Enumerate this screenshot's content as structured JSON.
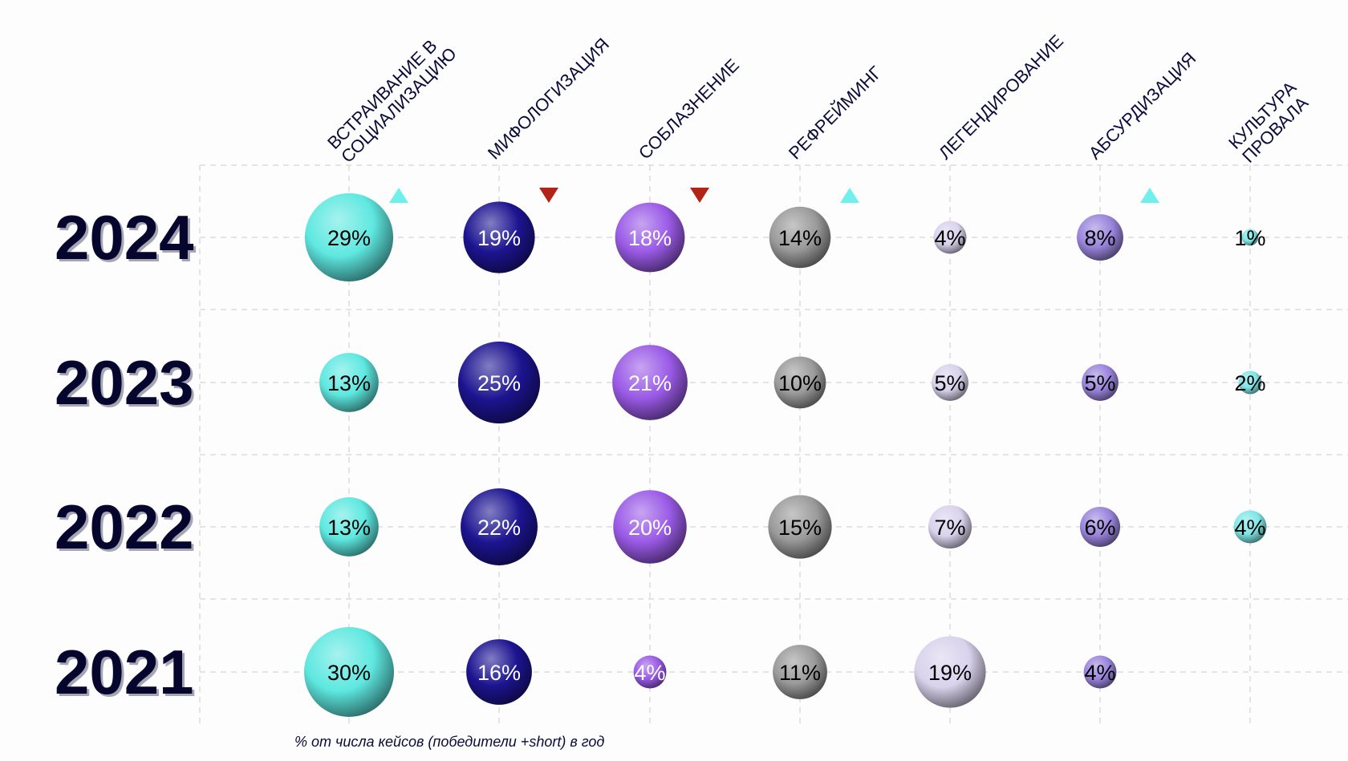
{
  "chart_data": {
    "type": "bubble-matrix",
    "title": "",
    "footnote": "% от числа кейсов (победители +short) в год",
    "columns": [
      "ВСТРАИВАНИЕ В СОЦИАЛИЗАЦИЮ",
      "МИФОЛОГИЗАЦИЯ",
      "СОБЛАЗНЕНИЕ",
      "РЕФРЕЙМИНГ",
      "ЛЕГЕНДИРОВАНИЕ",
      "АБСУРДИЗАЦИЯ",
      "КУЛЬТУРА ПРОВАЛА"
    ],
    "column_label_lines": [
      [
        "ВСТРАИВАНИЕ В",
        "СОЦИАЛИЗАЦИЮ"
      ],
      [
        "МИФОЛОГИЗАЦИЯ"
      ],
      [
        "СОБЛАЗНЕНИЕ"
      ],
      [
        "РЕФРЕЙМИНГ"
      ],
      [
        "ЛЕГЕНДИРОВАНИЕ"
      ],
      [
        "АБСУРДИЗАЦИЯ"
      ],
      [
        "КУЛЬТУРА",
        "ПРОВАЛА"
      ]
    ],
    "column_colors": [
      "#5ee8e0",
      "#1c1490",
      "#9a5ae6",
      "#9a9a9a",
      "#d9d2ec",
      "#9a84dc",
      "#7fe6e6"
    ],
    "label_colors": [
      "#000000",
      "#ffffff",
      "#ffffff",
      "#000000",
      "#000000",
      "#000000",
      "#000000"
    ],
    "rows": [
      {
        "year": "2024",
        "values": [
          29,
          19,
          18,
          14,
          4,
          8,
          1
        ],
        "labels": [
          "29%",
          "19%",
          "18%",
          "14%",
          "4%",
          "8%",
          "1%"
        ]
      },
      {
        "year": "2023",
        "values": [
          13,
          25,
          21,
          10,
          5,
          5,
          2
        ],
        "labels": [
          "13%",
          "25%",
          "21%",
          "10%",
          "5%",
          "5%",
          "2%"
        ]
      },
      {
        "year": "2022",
        "values": [
          13,
          22,
          20,
          15,
          7,
          6,
          4
        ],
        "labels": [
          "13%",
          "22%",
          "20%",
          "15%",
          "7%",
          "6%",
          "4%"
        ]
      },
      {
        "year": "2021",
        "values": [
          30,
          16,
          4,
          11,
          19,
          4,
          null
        ],
        "labels": [
          "30%",
          "16%",
          "4%",
          "11%",
          "19%",
          "4%",
          ""
        ]
      }
    ],
    "trend_markers_2024": [
      {
        "column": 0,
        "direction": "up",
        "color": "#6ff0ec"
      },
      {
        "column": 1,
        "direction": "down",
        "color": "#b22418"
      },
      {
        "column": 2,
        "direction": "down",
        "color": "#b22418"
      },
      {
        "column": 3,
        "direction": "up",
        "color": "#6ff0ec"
      },
      {
        "column": 5,
        "direction": "up",
        "color": "#6ff0ec"
      }
    ],
    "grid": true,
    "legend": "none"
  }
}
